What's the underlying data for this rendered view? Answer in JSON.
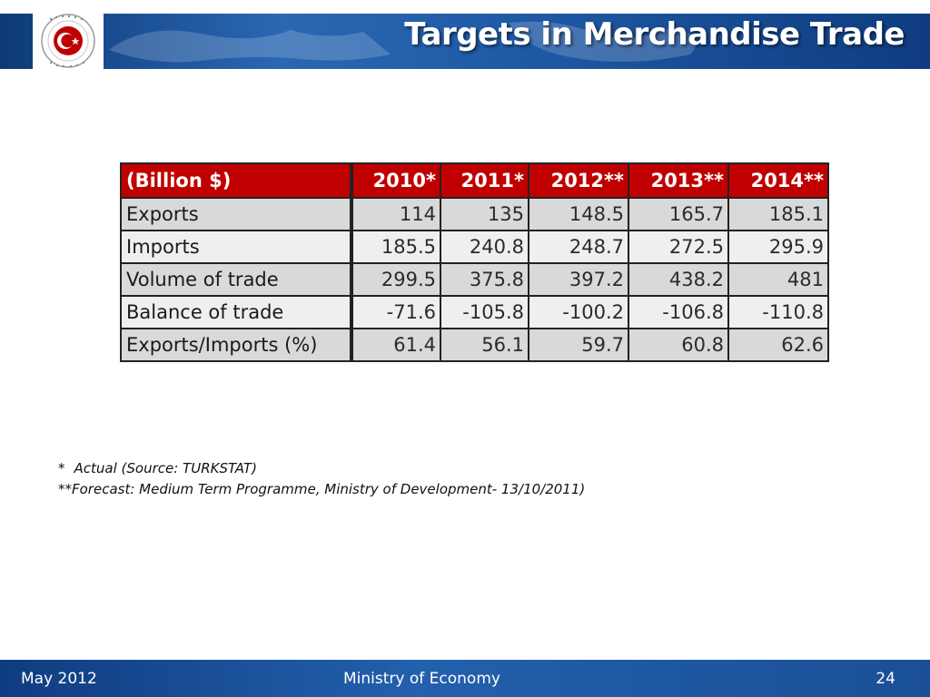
{
  "slide": {
    "title": "Targets in Merchandise Trade",
    "logo_text": "REPUBLIC OF TURKEY MINISTRY OF ECONOMY"
  },
  "table": {
    "header_label": "(Billion $)",
    "years": [
      "2010*",
      "2011*",
      "2012**",
      "2013**",
      "2014**"
    ],
    "rows": [
      {
        "label": "Exports",
        "values": [
          "114",
          "135",
          "148.5",
          "165.7",
          "185.1"
        ]
      },
      {
        "label": "Imports",
        "values": [
          "185.5",
          "240.8",
          "248.7",
          "272.5",
          "295.9"
        ]
      },
      {
        "label": "Volume of trade",
        "values": [
          "299.5",
          "375.8",
          "397.2",
          "438.2",
          "481"
        ]
      },
      {
        "label": "Balance of trade",
        "values": [
          "-71.6",
          "-105.8",
          "-100.2",
          "-106.8",
          "-110.8"
        ]
      },
      {
        "label": "Exports/Imports (%)",
        "values": [
          "61.4",
          "56.1",
          "59.7",
          "60.8",
          "62.6"
        ]
      }
    ]
  },
  "footnotes": {
    "fn1_marker": "*",
    "fn1_text": "Actual (Source: TURKSTAT)",
    "fn2_text": "**Forecast: Medium Term Programme, Ministry of Development- 13/10/2011)"
  },
  "footer": {
    "date": "May 2012",
    "organization": "Ministry of Economy",
    "page_number": "24"
  },
  "colors": {
    "header_blue": "#1f5aa6",
    "table_header_red": "#c00000",
    "row_gray": "#d9d9d9",
    "row_light": "#efefef"
  }
}
